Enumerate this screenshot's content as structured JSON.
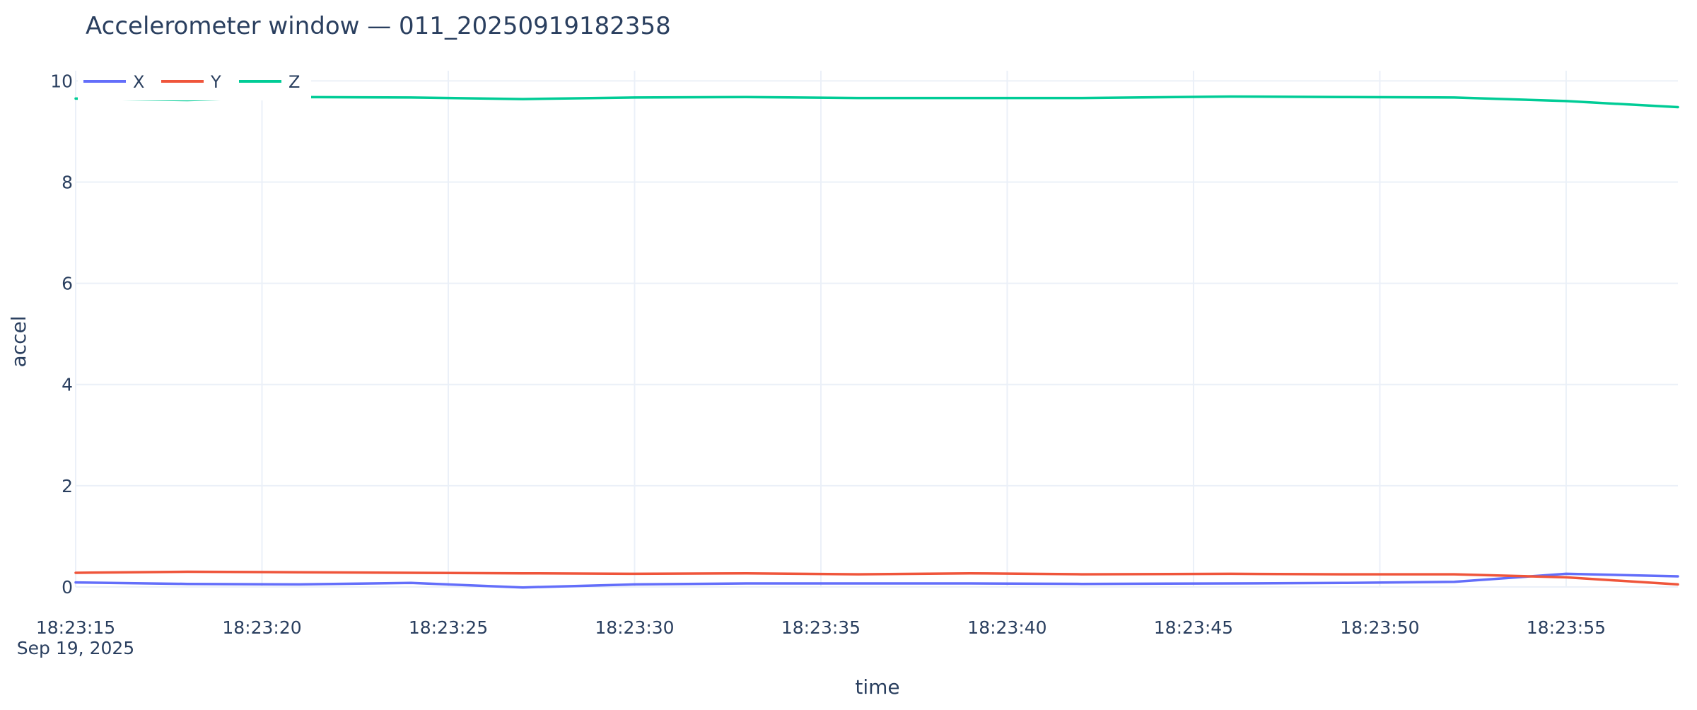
{
  "chart_data": {
    "type": "line",
    "title": "Accelerometer window — 011_20250919182358",
    "xlabel": "time",
    "ylabel": "accel",
    "x_ticks": [
      "18:23:15",
      "18:23:20",
      "18:23:25",
      "18:23:30",
      "18:23:35",
      "18:23:40",
      "18:23:45",
      "18:23:50",
      "18:23:55"
    ],
    "x_date_label": "Sep 19, 2025",
    "xlim": [
      "2025-09-19 18:23:15",
      "2025-09-19 18:23:58"
    ],
    "y_ticks": [
      "0",
      "2",
      "4",
      "6",
      "8",
      "10"
    ],
    "ylim": [
      0,
      10.2
    ],
    "grid": true,
    "legend_position": "top-left",
    "x": [
      "2025-09-19 18:23:15",
      "2025-09-19 18:23:18",
      "2025-09-19 18:23:21",
      "2025-09-19 18:23:24",
      "2025-09-19 18:23:27",
      "2025-09-19 18:23:30",
      "2025-09-19 18:23:33",
      "2025-09-19 18:23:36",
      "2025-09-19 18:23:39",
      "2025-09-19 18:23:42",
      "2025-09-19 18:23:46",
      "2025-09-19 18:23:49",
      "2025-09-19 18:23:52",
      "2025-09-19 18:23:55",
      "2025-09-19 18:23:58"
    ],
    "series": [
      {
        "name": "X",
        "color": "#636efa",
        "values": [
          0.09,
          0.06,
          0.05,
          0.08,
          -0.01,
          0.05,
          0.07,
          0.07,
          0.07,
          0.06,
          0.07,
          0.08,
          0.1,
          0.26,
          0.21
        ]
      },
      {
        "name": "Y",
        "color": "#ef553b",
        "values": [
          0.28,
          0.3,
          0.29,
          0.28,
          0.27,
          0.26,
          0.27,
          0.25,
          0.27,
          0.25,
          0.26,
          0.25,
          0.25,
          0.19,
          0.05
        ]
      },
      {
        "name": "Z",
        "color": "#00cc96",
        "values": [
          9.65,
          9.62,
          9.68,
          9.67,
          9.64,
          9.67,
          9.68,
          9.66,
          9.66,
          9.66,
          9.69,
          9.68,
          9.67,
          9.6,
          9.48
        ]
      }
    ]
  }
}
